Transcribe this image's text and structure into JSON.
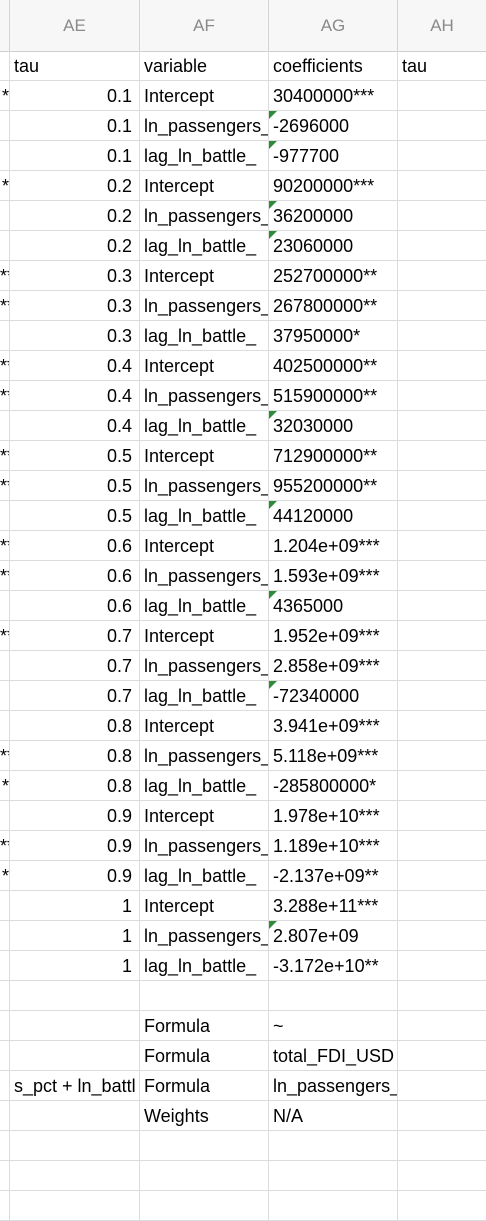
{
  "columns": [
    {
      "id": "col-AD",
      "label": ""
    },
    {
      "id": "col-AE",
      "label": "AE"
    },
    {
      "id": "col-AF",
      "label": "AF"
    },
    {
      "id": "col-AG",
      "label": "AG"
    },
    {
      "id": "col-AH",
      "label": "AH"
    }
  ],
  "rows": [
    {
      "c0": "",
      "c1": "tau",
      "c1_left": true,
      "c2": "variable",
      "c3": "coefficients",
      "c4": "tau",
      "flag": false
    },
    {
      "c0": "*",
      "c1": "0.1",
      "c2": "Intercept",
      "c3": "30400000***",
      "c4": "",
      "flag": false
    },
    {
      "c0": "",
      "c1": "0.1",
      "c2": "ln_passengers_",
      "c3": "-2696000",
      "c4": "",
      "flag": true
    },
    {
      "c0": "",
      "c1": "0.1",
      "c2": "lag_ln_battle_",
      "c3": "-977700",
      "c4": "",
      "flag": true
    },
    {
      "c0": "*",
      "c1": "0.2",
      "c2": "Intercept",
      "c3": "90200000***",
      "c4": "",
      "flag": false
    },
    {
      "c0": "",
      "c1": "0.2",
      "c2": "ln_passengers_",
      "c3": "36200000",
      "c4": "",
      "flag": true
    },
    {
      "c0": "",
      "c1": "0.2",
      "c2": "lag_ln_battle_",
      "c3": "23060000",
      "c4": "",
      "flag": true
    },
    {
      "c0": "**",
      "c1": "0.3",
      "c2": "Intercept",
      "c3": "252700000**",
      "c4": "",
      "flag": false
    },
    {
      "c0": "**",
      "c1": "0.3",
      "c2": "ln_passengers_",
      "c3": "267800000**",
      "c4": "",
      "flag": false
    },
    {
      "c0": "",
      "c1": "0.3",
      "c2": "lag_ln_battle_",
      "c3": "37950000*",
      "c4": "",
      "flag": false
    },
    {
      "c0": "**",
      "c1": "0.4",
      "c2": "Intercept",
      "c3": "402500000**",
      "c4": "",
      "flag": false
    },
    {
      "c0": "**",
      "c1": "0.4",
      "c2": "ln_passengers_",
      "c3": "515900000**",
      "c4": "",
      "flag": false
    },
    {
      "c0": "",
      "c1": "0.4",
      "c2": "lag_ln_battle_",
      "c3": "32030000",
      "c4": "",
      "flag": true
    },
    {
      "c0": "**",
      "c1": "0.5",
      "c2": "Intercept",
      "c3": "712900000**",
      "c4": "",
      "flag": false
    },
    {
      "c0": "**",
      "c1": "0.5",
      "c2": "ln_passengers_",
      "c3": "955200000**",
      "c4": "",
      "flag": false
    },
    {
      "c0": "",
      "c1": "0.5",
      "c2": "lag_ln_battle_",
      "c3": "44120000",
      "c4": "",
      "flag": true
    },
    {
      "c0": "**",
      "c1": "0.6",
      "c2": "Intercept",
      "c3": "1.204e+09***",
      "c4": "",
      "flag": false
    },
    {
      "c0": "**",
      "c1": "0.6",
      "c2": "ln_passengers_",
      "c3": "1.593e+09***",
      "c4": "",
      "flag": false
    },
    {
      "c0": "",
      "c1": "0.6",
      "c2": "lag_ln_battle_",
      "c3": "4365000",
      "c4": "",
      "flag": true
    },
    {
      "c0": "**",
      "c1": "0.7",
      "c2": "Intercept",
      "c3": "1.952e+09***",
      "c4": "",
      "flag": false
    },
    {
      "c0": "",
      "c1": "0.7",
      "c2": "ln_passengers_",
      "c3": "2.858e+09***",
      "c4": "",
      "flag": false
    },
    {
      "c0": "",
      "c1": "0.7",
      "c2": "lag_ln_battle_",
      "c3": "-72340000",
      "c4": "",
      "flag": true
    },
    {
      "c0": "",
      "c1": "0.8",
      "c2": "Intercept",
      "c3": "3.941e+09***",
      "c4": "",
      "flag": false
    },
    {
      "c0": "**",
      "c1": "0.8",
      "c2": "ln_passengers_",
      "c3": "5.118e+09***",
      "c4": "",
      "flag": false
    },
    {
      "c0": "*",
      "c1": "0.8",
      "c2": "lag_ln_battle_",
      "c3": "-285800000*",
      "c4": "",
      "flag": false
    },
    {
      "c0": "",
      "c1": "0.9",
      "c2": "Intercept",
      "c3": "1.978e+10***",
      "c4": "",
      "flag": false
    },
    {
      "c0": "**",
      "c1": "0.9",
      "c2": "ln_passengers_",
      "c3": "1.189e+10***",
      "c4": "",
      "flag": false
    },
    {
      "c0": "*",
      "c1": "0.9",
      "c2": "lag_ln_battle_",
      "c3": "-2.137e+09**",
      "c4": "",
      "flag": false
    },
    {
      "c0": "",
      "c1": "1",
      "c2": "Intercept",
      "c3": "3.288e+11***",
      "c4": "",
      "flag": false
    },
    {
      "c0": "",
      "c1": "1",
      "c2": "ln_passengers_",
      "c3": "2.807e+09",
      "c4": "",
      "flag": true
    },
    {
      "c0": "",
      "c1": "1",
      "c2": "lag_ln_battle_",
      "c3": "-3.172e+10**",
      "c4": "",
      "flag": false
    },
    {
      "c0": "",
      "c1": "",
      "c2": "",
      "c3": "",
      "c4": "",
      "flag": false
    },
    {
      "c0": "",
      "c1": "",
      "c2": "Formula",
      "c3": "~",
      "c4": "",
      "flag": false
    },
    {
      "c0": "",
      "c1": "",
      "c2": "Formula",
      "c3": "total_FDI_USD",
      "c4": "",
      "flag": false
    },
    {
      "c0": "",
      "c1": "s_pct + ln_battl",
      "c1_left": true,
      "c2": "Formula",
      "c3": "ln_passengers_pct + lag_",
      "c4": "",
      "flag": false
    },
    {
      "c0": "",
      "c1": "",
      "c2": "Weights",
      "c3": "N/A",
      "c4": "",
      "flag": false
    },
    {
      "c0": "",
      "c1": "",
      "c2": "",
      "c3": "",
      "c4": "",
      "flag": false
    },
    {
      "c0": "",
      "c1": "",
      "c2": "",
      "c3": "",
      "c4": "",
      "flag": false
    },
    {
      "c0": "",
      "c1": "",
      "c2": "",
      "c3": "",
      "c4": "",
      "flag": false
    }
  ]
}
